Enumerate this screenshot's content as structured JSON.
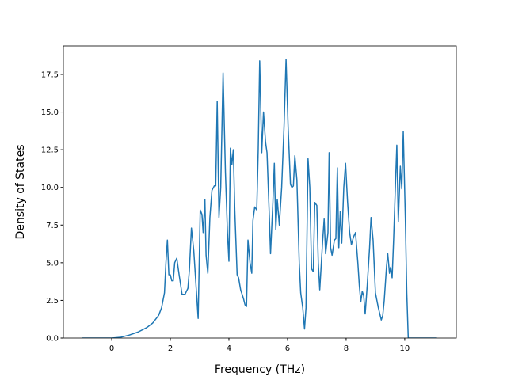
{
  "chart_data": {
    "type": "line",
    "xlabel": "Frequency (THz)",
    "ylabel": "Density of States",
    "xlim": [
      -1.65,
      11.76
    ],
    "ylim": [
      0,
      19.39
    ],
    "xticks": [
      0,
      2,
      4,
      6,
      8,
      10
    ],
    "yticks": [
      {
        "value": 0,
        "label": "0.0"
      },
      2.5,
      {
        "value": 5,
        "label": "5.0"
      },
      7.5,
      {
        "value": 10,
        "label": "10.0"
      },
      12.5,
      {
        "value": 15,
        "label": "15.0"
      },
      17.5
    ],
    "series": [
      {
        "color": "#1f77b4",
        "x": [
          -1,
          0,
          0.3,
          0.6,
          0.9,
          1.2,
          1.4,
          1.6,
          1.7,
          1.8,
          1.85,
          1.9,
          1.95,
          2.0,
          2.05,
          2.1,
          2.15,
          2.22,
          2.3,
          2.4,
          2.5,
          2.6,
          2.65,
          2.72,
          2.8,
          2.9,
          2.95,
          3.02,
          3.08,
          3.12,
          3.18,
          3.22,
          3.28,
          3.35,
          3.42,
          3.5,
          3.55,
          3.6,
          3.66,
          3.72,
          3.8,
          3.88,
          3.95,
          4.0,
          4.05,
          4.1,
          4.15,
          4.2,
          4.28,
          4.33,
          4.4,
          4.5,
          4.55,
          4.6,
          4.65,
          4.72,
          4.78,
          4.82,
          4.88,
          4.95,
          5.0,
          5.05,
          5.12,
          5.18,
          5.25,
          5.3,
          5.38,
          5.42,
          5.5,
          5.55,
          5.6,
          5.65,
          5.72,
          5.8,
          5.88,
          5.95,
          6.02,
          6.1,
          6.15,
          6.2,
          6.25,
          6.32,
          6.4,
          6.45,
          6.52,
          6.58,
          6.63,
          6.7,
          6.76,
          6.82,
          6.88,
          6.93,
          7.0,
          7.05,
          7.1,
          7.2,
          7.25,
          7.3,
          7.38,
          7.42,
          7.47,
          7.52,
          7.6,
          7.65,
          7.7,
          7.75,
          7.8,
          7.85,
          7.92,
          7.98,
          8.05,
          8.12,
          8.18,
          8.25,
          8.32,
          8.4,
          8.45,
          8.5,
          8.55,
          8.6,
          8.65,
          8.72,
          8.8,
          8.85,
          8.92,
          9.0,
          9.1,
          9.2,
          9.25,
          9.3,
          9.38,
          9.42,
          9.48,
          9.52,
          9.57,
          9.62,
          9.68,
          9.73,
          9.78,
          9.85,
          9.9,
          9.95,
          10.02,
          10.07,
          10.12,
          10.5,
          11.1
        ],
        "values": [
          0,
          0,
          0.05,
          0.2,
          0.4,
          0.7,
          1.0,
          1.5,
          2.0,
          3.0,
          5.0,
          6.5,
          4.2,
          4.2,
          3.8,
          3.8,
          5.0,
          5.3,
          4.2,
          2.9,
          2.9,
          3.3,
          4.5,
          7.3,
          5.8,
          2.8,
          1.3,
          8.5,
          8.2,
          7.0,
          9.2,
          5.5,
          4.3,
          8.0,
          9.8,
          10.1,
          10.1,
          15.7,
          8.0,
          10.0,
          17.6,
          11.0,
          7.0,
          5.1,
          12.6,
          11.5,
          12.5,
          8.5,
          4.2,
          4.0,
          3.2,
          2.6,
          2.2,
          2.1,
          6.5,
          5.0,
          4.3,
          7.8,
          8.7,
          8.5,
          12.5,
          18.4,
          12.3,
          15.0,
          13.0,
          12.3,
          8.0,
          5.6,
          9.0,
          11.6,
          7.2,
          9.2,
          7.5,
          10.0,
          14.0,
          18.5,
          14.0,
          10.2,
          10.0,
          10.1,
          12.1,
          10.5,
          5.0,
          3.0,
          2.0,
          0.6,
          2.0,
          11.9,
          10.0,
          4.6,
          4.4,
          9.0,
          8.8,
          5.0,
          3.2,
          6.5,
          7.9,
          5.6,
          7.0,
          12.3,
          6.0,
          5.5,
          6.5,
          6.6,
          11.3,
          6.0,
          8.4,
          6.3,
          10.0,
          11.6,
          9.0,
          7.0,
          6.2,
          6.7,
          7.0,
          5.0,
          3.5,
          2.4,
          3.1,
          2.8,
          1.6,
          3.5,
          6.0,
          8.0,
          6.5,
          3.0,
          2.0,
          1.2,
          1.5,
          2.5,
          4.8,
          5.6,
          4.3,
          4.7,
          4.0,
          6.5,
          10.0,
          12.8,
          7.7,
          11.4,
          9.9,
          13.7,
          8.0,
          3.0,
          0,
          0,
          0
        ]
      }
    ]
  }
}
